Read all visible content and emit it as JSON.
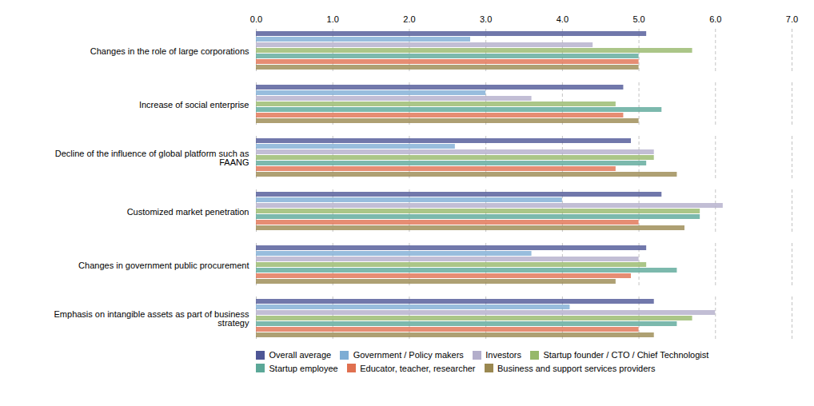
{
  "chart_data": {
    "type": "bar",
    "orientation": "horizontal",
    "categories": [
      "Changes in the role of large corporations",
      "Increase of social enterprise",
      "Decline of the influence of global platform such as\nFAANG",
      "Customized market penetration",
      "Changes in government public procurement",
      "Emphasis on intangible assets as part of business\nstrategy"
    ],
    "series": [
      {
        "name": "Overall average",
        "color": "#4e5696",
        "values": [
          5.1,
          4.8,
          4.9,
          5.3,
          5.1,
          5.2
        ]
      },
      {
        "name": "Government / Policy makers",
        "color": "#7eadd4",
        "values": [
          2.8,
          3.0,
          2.6,
          4.0,
          3.6,
          4.1
        ]
      },
      {
        "name": "Investors",
        "color": "#b3aecb",
        "values": [
          4.4,
          3.6,
          5.2,
          6.1,
          5.0,
          6.0
        ]
      },
      {
        "name": "Startup founder / CTO / Chief Technologist",
        "color": "#96b86a",
        "values": [
          5.7,
          4.7,
          5.2,
          5.8,
          5.1,
          5.7
        ]
      },
      {
        "name": "Startup employee",
        "color": "#5ba898",
        "values": [
          5.0,
          5.3,
          5.1,
          5.8,
          5.5,
          5.5
        ]
      },
      {
        "name": "Educator, teacher, researcher",
        "color": "#e07050",
        "values": [
          5.0,
          4.8,
          4.7,
          5.0,
          4.9,
          5.0
        ]
      },
      {
        "name": "Business and support services providers",
        "color": "#9a8850",
        "values": [
          5.0,
          5.0,
          5.5,
          5.6,
          4.7,
          5.2
        ]
      }
    ],
    "xlim": [
      0,
      7
    ],
    "xticks": [
      0,
      1,
      2,
      3,
      4,
      5,
      6,
      7
    ],
    "grid": true,
    "legend": "bottom"
  }
}
